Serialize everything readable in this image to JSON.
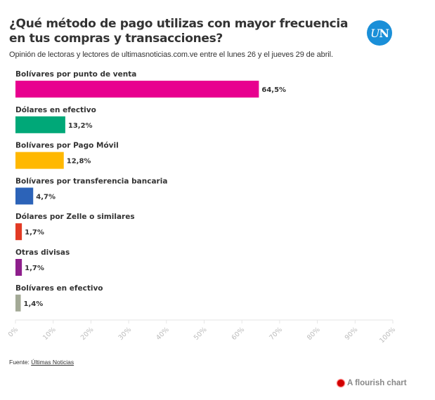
{
  "header": {
    "title": "¿Qué método de pago utilizas con mayor frecuencia en tus compras y transacciones?",
    "subtitle": "Opinión de lectoras y lectores de ultimasnoticias.com.ve entre el lunes 26 y el jueves 29 de abril.",
    "logo_text_u": "U",
    "logo_text_n": "N"
  },
  "footer": {
    "source_prefix": "Fuente: ",
    "source_link": "Últimas Noticias",
    "flourish": "A flourish chart"
  },
  "chart_data": {
    "type": "bar",
    "orientation": "horizontal",
    "title": "¿Qué método de pago utilizas con mayor frecuencia en tus compras y transacciones?",
    "subtitle": "Opinión de lectoras y lectores de ultimasnoticias.com.ve entre el lunes 26 y el jueves 29 de abril.",
    "xlabel": "",
    "ylabel": "",
    "xlim": [
      0,
      100
    ],
    "grid": false,
    "categories": [
      "Bolívares por punto de venta",
      "Dólares en efectivo",
      "Bolívares por Pago Móvil",
      "Bolívares por transferencia bancaria",
      "Dólares por Zelle o similares",
      "Otras divisas",
      "Bolívares en efectivo"
    ],
    "values": [
      64.5,
      13.2,
      12.8,
      4.7,
      1.7,
      1.7,
      1.4
    ],
    "value_labels": [
      "64,5%",
      "13,2%",
      "12,8%",
      "4,7%",
      "1,7%",
      "1,7%",
      "1,4%"
    ],
    "colors": [
      "#e8008f",
      "#00a878",
      "#ffb800",
      "#2c63b8",
      "#e23a24",
      "#8e1f8c",
      "#a3a996"
    ],
    "x_ticks": [
      0,
      10,
      20,
      30,
      40,
      50,
      60,
      70,
      80,
      90,
      100
    ],
    "x_tick_labels": [
      "0%",
      "10%",
      "20%",
      "30%",
      "40%",
      "50%",
      "60%",
      "70%",
      "80%",
      "90%",
      "100%"
    ]
  }
}
